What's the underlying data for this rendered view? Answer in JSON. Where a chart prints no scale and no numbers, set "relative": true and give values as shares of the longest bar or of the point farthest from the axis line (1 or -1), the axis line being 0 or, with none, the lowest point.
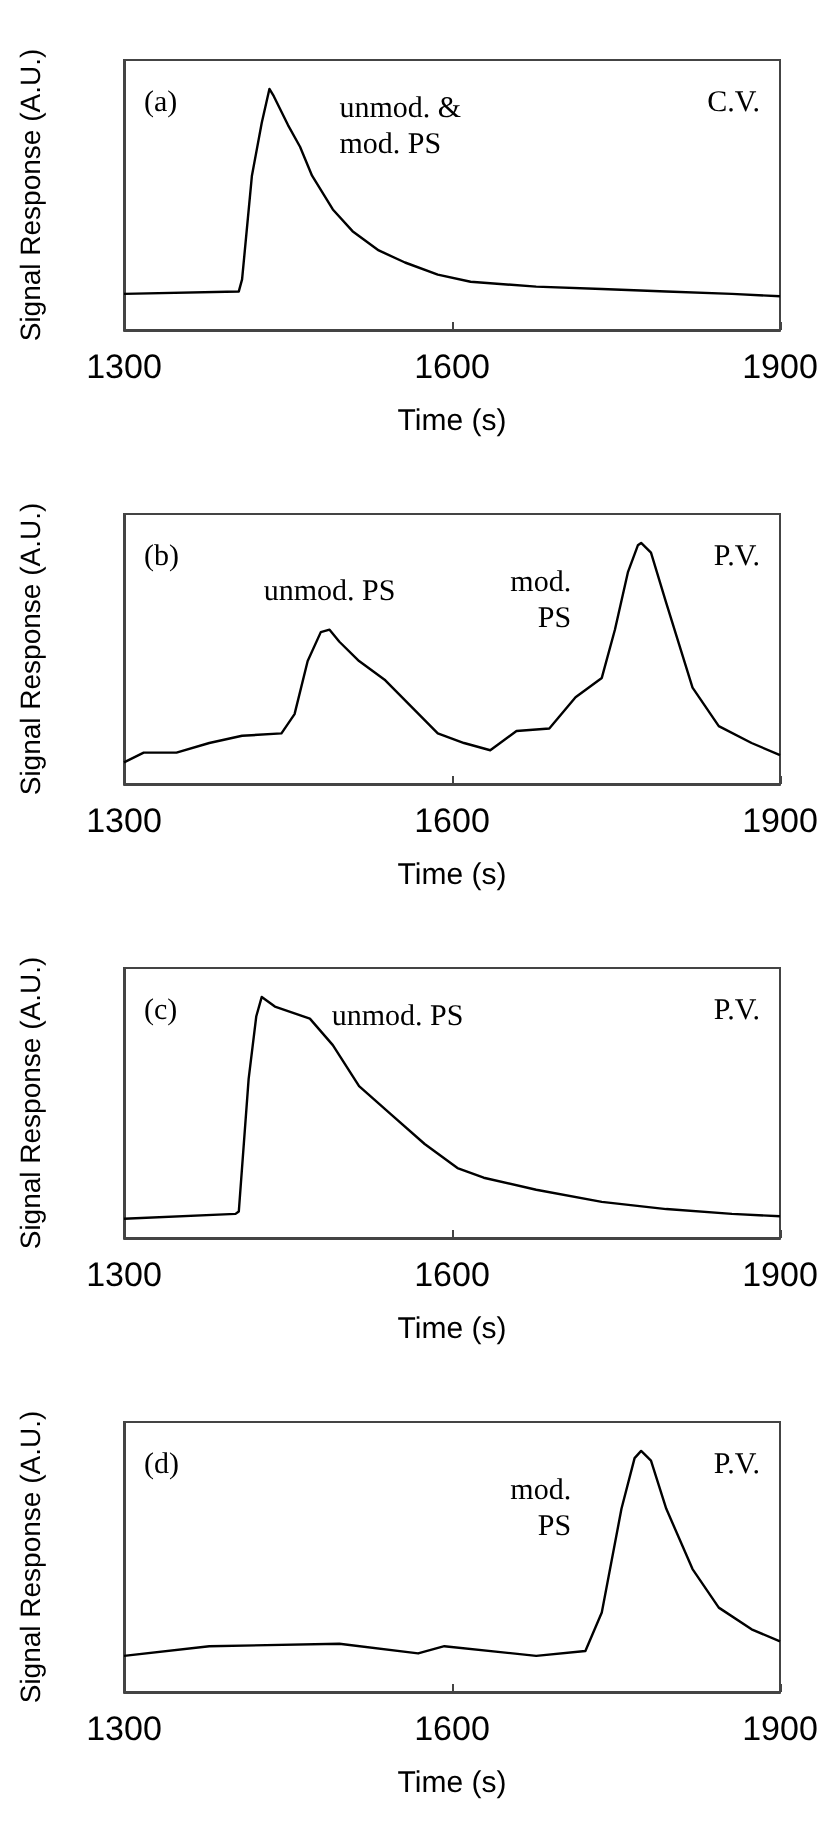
{
  "chart_data": [
    {
      "type": "line",
      "relative": true,
      "xlabel": "Time (s)",
      "ylabel": "Signal Response (A.U.)",
      "xlim": [
        1300,
        1900
      ],
      "xticks": [
        1300,
        1600,
        1900
      ],
      "annotations": [
        "(a)",
        "unmod. &\nmod. PS",
        "C.V."
      ],
      "series": [
        {
          "color": "#000000",
          "x": [
            1300,
            1405,
            1408,
            1417,
            1426,
            1433,
            1437,
            1450,
            1461,
            1472,
            1491,
            1509,
            1533,
            1557,
            1587,
            1617,
            1677,
            1737,
            1796,
            1856,
            1900
          ],
          "values": [
            0.15,
            0.16,
            0.21,
            0.64,
            0.86,
            1,
            0.97,
            0.85,
            0.76,
            0.64,
            0.5,
            0.41,
            0.33,
            0.28,
            0.23,
            0.2,
            0.18,
            0.17,
            0.16,
            0.15,
            0.14
          ]
        }
      ]
    },
    {
      "type": "line",
      "relative": true,
      "xlabel": "Time (s)",
      "ylabel": "Signal Response (A.U.)",
      "xlim": [
        1300,
        1900
      ],
      "xticks": [
        1300,
        1600,
        1900
      ],
      "annotations": [
        "(b)",
        "unmod. PS",
        "mod.\nPS",
        "P.V."
      ],
      "series": [
        {
          "color": "#000000",
          "x": [
            1300,
            1318,
            1348,
            1378,
            1408,
            1444,
            1456,
            1468,
            1480,
            1488,
            1497,
            1515,
            1539,
            1563,
            1587,
            1611,
            1635,
            1659,
            1689,
            1713,
            1737,
            1749,
            1761,
            1770,
            1773,
            1782,
            1796,
            1820,
            1844,
            1874,
            1900
          ],
          "values": [
            0.09,
            0.13,
            0.13,
            0.17,
            0.2,
            0.21,
            0.29,
            0.51,
            0.63,
            0.64,
            0.59,
            0.51,
            0.43,
            0.32,
            0.21,
            0.17,
            0.14,
            0.22,
            0.23,
            0.36,
            0.44,
            0.64,
            0.88,
            0.99,
            1,
            0.96,
            0.75,
            0.4,
            0.24,
            0.17,
            0.12
          ]
        }
      ]
    },
    {
      "type": "line",
      "relative": true,
      "xlabel": "Time (s)",
      "ylabel": "Signal Response (A.U.)",
      "xlim": [
        1300,
        1900
      ],
      "xticks": [
        1300,
        1600,
        1900
      ],
      "annotations": [
        "(c)",
        "unmod. PS",
        "P.V."
      ],
      "series": [
        {
          "color": "#000000",
          "x": [
            1300,
            1402,
            1405,
            1414,
            1421,
            1426,
            1438,
            1470,
            1491,
            1515,
            1545,
            1575,
            1605,
            1629,
            1677,
            1737,
            1796,
            1856,
            1900
          ],
          "values": [
            0.08,
            0.1,
            0.11,
            0.66,
            0.92,
            1,
            0.96,
            0.91,
            0.8,
            0.63,
            0.51,
            0.39,
            0.29,
            0.25,
            0.2,
            0.15,
            0.12,
            0.1,
            0.09
          ]
        }
      ]
    },
    {
      "type": "line",
      "relative": true,
      "xlabel": "Time (s)",
      "ylabel": "Signal Response (A.U.)",
      "xlim": [
        1300,
        1900
      ],
      "xticks": [
        1300,
        1600,
        1900
      ],
      "annotations": [
        "(d)",
        "mod.\nPS",
        "P.V."
      ],
      "series": [
        {
          "color": "#000000",
          "x": [
            1300,
            1378,
            1497,
            1569,
            1593,
            1677,
            1722,
            1737,
            1755,
            1767,
            1773,
            1782,
            1796,
            1820,
            1844,
            1874,
            1900
          ],
          "values": [
            0.15,
            0.19,
            0.2,
            0.16,
            0.19,
            0.15,
            0.17,
            0.33,
            0.76,
            0.97,
            1,
            0.96,
            0.76,
            0.51,
            0.35,
            0.26,
            0.21
          ]
        }
      ]
    }
  ]
}
